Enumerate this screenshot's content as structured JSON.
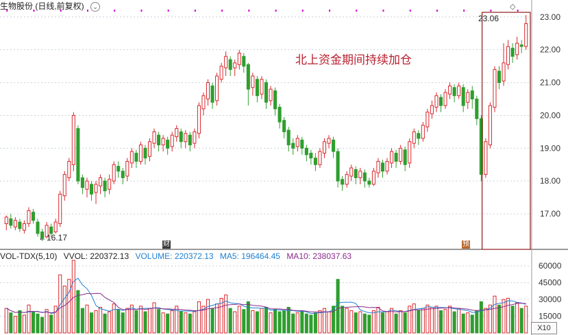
{
  "header": {
    "title": "生物股份 (日线,前复权)",
    "chevron_icon": "chevron-down-icon",
    "diamond_icon": "diamond-icon"
  },
  "annotation_text": "北上资金期间持续加仓",
  "high_label": "23.06",
  "low_label": "←16.17",
  "tag_cai": "财",
  "tag_yu": "预",
  "volume_panel": {
    "indicator": "VOL-TDX(5,10)",
    "vvol_label": "VVOL: 220372.13",
    "volume_label": "VOLUME: 220372.13",
    "ma5_label": "MA5: 196464.45",
    "ma10_label": "MA10: 238037.63",
    "x10_button": "X10"
  },
  "colors": {
    "up": "#d9262b",
    "down": "#2f9e2f",
    "ma5": "#1e7fd1",
    "ma10": "#8a2a8a",
    "highlight_box": "#8b1a1a",
    "grid": "#c8d2dc",
    "marker": "#d400d4"
  },
  "chart_data": [
    {
      "type": "candlestick",
      "title": "生物股份 (日线,前复权)",
      "ylim": [
        16.0,
        23.1
      ],
      "y_ticks": [
        "23.00",
        "22.00",
        "21.00",
        "20.00",
        "19.00",
        "18.00",
        "17.00"
      ],
      "annotation": "北上资金期间持续加仓",
      "high_label": "23.06",
      "low_label": "16.17",
      "candles": [
        [
          16.7,
          16.9,
          16.5,
          16.95
        ],
        [
          16.85,
          16.65,
          16.55,
          17.0
        ],
        [
          16.6,
          16.8,
          16.5,
          16.9
        ],
        [
          16.75,
          16.55,
          16.45,
          16.85
        ],
        [
          16.5,
          16.7,
          16.4,
          16.8
        ],
        [
          16.7,
          17.1,
          16.6,
          17.2
        ],
        [
          17.05,
          16.8,
          16.7,
          17.15
        ],
        [
          16.75,
          16.4,
          16.3,
          16.85
        ],
        [
          16.45,
          16.25,
          16.17,
          16.55
        ],
        [
          16.3,
          16.65,
          16.25,
          16.75
        ],
        [
          16.6,
          16.4,
          16.3,
          16.7
        ],
        [
          16.45,
          16.75,
          16.4,
          16.85
        ],
        [
          16.7,
          17.6,
          16.6,
          17.7
        ],
        [
          17.55,
          18.2,
          17.4,
          18.3
        ],
        [
          18.1,
          18.6,
          18.0,
          18.7
        ],
        [
          18.5,
          20.0,
          18.3,
          20.1
        ],
        [
          19.6,
          18.0,
          17.9,
          19.7
        ],
        [
          18.1,
          17.8,
          17.6,
          18.2
        ],
        [
          17.75,
          18.0,
          17.5,
          18.1
        ],
        [
          17.9,
          17.6,
          17.4,
          18.0
        ],
        [
          17.65,
          17.9,
          17.3,
          18.0
        ],
        [
          17.85,
          18.1,
          17.6,
          18.2
        ],
        [
          18.0,
          17.7,
          17.5,
          18.1
        ],
        [
          17.75,
          18.05,
          17.6,
          18.2
        ],
        [
          18.0,
          18.5,
          17.9,
          18.6
        ],
        [
          18.45,
          18.3,
          18.1,
          18.6
        ],
        [
          18.3,
          18.1,
          17.9,
          18.4
        ],
        [
          18.15,
          18.6,
          18.0,
          18.7
        ],
        [
          18.55,
          18.9,
          18.4,
          19.0
        ],
        [
          18.85,
          18.6,
          18.4,
          18.95
        ],
        [
          18.6,
          19.1,
          18.5,
          19.2
        ],
        [
          19.0,
          18.7,
          18.5,
          19.1
        ],
        [
          18.75,
          19.2,
          18.6,
          19.3
        ],
        [
          19.15,
          19.5,
          19.0,
          19.6
        ],
        [
          19.4,
          19.1,
          18.9,
          19.5
        ],
        [
          19.1,
          19.3,
          18.9,
          19.4
        ],
        [
          19.25,
          19.0,
          18.8,
          19.35
        ],
        [
          19.05,
          19.4,
          18.9,
          19.5
        ],
        [
          19.35,
          19.6,
          19.2,
          19.7
        ],
        [
          19.5,
          19.2,
          19.0,
          19.6
        ],
        [
          19.2,
          19.45,
          19.0,
          19.55
        ],
        [
          19.4,
          19.1,
          18.9,
          19.5
        ],
        [
          19.15,
          19.5,
          19.0,
          19.6
        ],
        [
          19.45,
          20.3,
          19.3,
          20.4
        ],
        [
          20.2,
          20.6,
          20.0,
          20.7
        ],
        [
          20.5,
          21.0,
          20.3,
          21.1
        ],
        [
          20.9,
          20.4,
          20.2,
          21.0
        ],
        [
          20.45,
          21.2,
          20.3,
          21.3
        ],
        [
          21.1,
          21.5,
          21.0,
          21.6
        ],
        [
          21.45,
          21.8,
          21.2,
          21.95
        ],
        [
          21.7,
          21.4,
          21.2,
          21.8
        ],
        [
          21.45,
          21.6,
          21.2,
          21.7
        ],
        [
          21.55,
          21.9,
          21.4,
          22.0
        ],
        [
          21.8,
          21.5,
          21.3,
          21.9
        ],
        [
          21.55,
          20.8,
          20.3,
          21.6
        ],
        [
          20.85,
          21.2,
          20.6,
          21.3
        ],
        [
          21.1,
          20.6,
          20.4,
          21.2
        ],
        [
          20.65,
          21.1,
          20.5,
          21.2
        ],
        [
          21.0,
          20.4,
          20.2,
          21.1
        ],
        [
          20.45,
          20.8,
          20.3,
          20.9
        ],
        [
          20.75,
          20.2,
          20.0,
          20.85
        ],
        [
          20.25,
          19.8,
          19.6,
          20.35
        ],
        [
          19.85,
          19.5,
          19.3,
          19.95
        ],
        [
          19.55,
          19.1,
          18.9,
          19.65
        ],
        [
          19.15,
          19.0,
          18.8,
          19.3
        ],
        [
          19.05,
          19.3,
          18.9,
          19.4
        ],
        [
          19.25,
          19.0,
          18.8,
          19.35
        ],
        [
          19.0,
          18.8,
          18.6,
          19.1
        ],
        [
          18.85,
          18.7,
          18.5,
          18.95
        ],
        [
          18.7,
          18.5,
          18.3,
          18.85
        ],
        [
          18.5,
          18.9,
          18.4,
          19.0
        ],
        [
          18.85,
          19.2,
          18.7,
          19.3
        ],
        [
          19.15,
          19.3,
          19.0,
          19.4
        ],
        [
          19.25,
          18.9,
          18.7,
          19.35
        ],
        [
          18.9,
          18.0,
          17.8,
          19.0
        ],
        [
          18.05,
          17.9,
          17.7,
          18.15
        ],
        [
          17.9,
          18.2,
          17.8,
          18.3
        ],
        [
          18.15,
          18.4,
          18.0,
          18.5
        ],
        [
          18.35,
          18.1,
          17.9,
          18.45
        ],
        [
          18.1,
          18.3,
          17.9,
          18.4
        ],
        [
          18.25,
          18.0,
          17.8,
          18.35
        ],
        [
          18.0,
          17.9,
          17.8,
          18.1
        ],
        [
          17.9,
          18.3,
          17.85,
          18.4
        ],
        [
          18.25,
          18.6,
          18.1,
          18.7
        ],
        [
          18.55,
          18.3,
          18.1,
          18.65
        ],
        [
          18.3,
          18.6,
          18.2,
          18.7
        ],
        [
          18.55,
          18.9,
          18.4,
          19.0
        ],
        [
          18.85,
          18.6,
          18.4,
          18.95
        ],
        [
          18.6,
          19.0,
          18.5,
          19.1
        ],
        [
          18.95,
          18.5,
          18.3,
          19.05
        ],
        [
          18.55,
          19.2,
          18.4,
          19.3
        ],
        [
          19.15,
          19.5,
          19.0,
          19.6
        ],
        [
          19.45,
          19.3,
          19.1,
          19.55
        ],
        [
          19.3,
          19.7,
          19.2,
          19.8
        ],
        [
          19.65,
          20.1,
          19.5,
          20.2
        ],
        [
          20.05,
          20.3,
          19.9,
          20.45
        ],
        [
          20.25,
          20.6,
          20.1,
          20.7
        ],
        [
          20.55,
          20.3,
          20.1,
          20.65
        ],
        [
          20.3,
          20.7,
          20.2,
          20.8
        ],
        [
          20.65,
          20.9,
          20.5,
          21.0
        ],
        [
          20.85,
          20.6,
          20.4,
          20.95
        ],
        [
          20.6,
          20.9,
          20.5,
          21.0
        ],
        [
          20.85,
          20.3,
          20.1,
          20.95
        ],
        [
          20.4,
          20.7,
          20.2,
          20.8
        ],
        [
          20.75,
          20.5,
          20.2,
          20.9
        ],
        [
          20.5,
          19.9,
          19.7,
          20.6
        ],
        [
          19.9,
          18.2,
          18.0,
          20.0
        ],
        [
          18.2,
          19.2,
          18.1,
          19.3
        ],
        [
          19.1,
          20.3,
          19.0,
          20.4
        ],
        [
          20.25,
          21.4,
          20.1,
          21.5
        ],
        [
          21.35,
          21.0,
          20.8,
          21.5
        ],
        [
          21.05,
          21.6,
          20.9,
          22.2
        ],
        [
          21.55,
          22.1,
          21.4,
          22.3
        ],
        [
          22.05,
          21.8,
          21.6,
          22.2
        ],
        [
          21.85,
          22.2,
          21.7,
          22.4
        ],
        [
          22.15,
          22.1,
          21.9,
          22.3
        ],
        [
          22.1,
          22.8,
          22.0,
          23.06
        ]
      ]
    },
    {
      "type": "bar",
      "title": "VOL-TDX(5,10)",
      "ylim": [
        0,
        65000
      ],
      "y_ticks": [
        "60000",
        "45000",
        "30000",
        "15000"
      ],
      "legend": [
        "VOLUME: 220372.13",
        "MA5: 196464.45",
        "MA10: 238037.63"
      ],
      "volumes": [
        22000,
        18000,
        15000,
        20000,
        16000,
        25000,
        19000,
        17000,
        14000,
        21000,
        16000,
        24000,
        52000,
        42000,
        48000,
        65000,
        38000,
        22000,
        25000,
        18000,
        20000,
        23000,
        17000,
        19000,
        26000,
        21000,
        18000,
        22000,
        25000,
        20000,
        24000,
        19000,
        22000,
        27000,
        21000,
        18000,
        17000,
        20000,
        24000,
        19000,
        18000,
        17000,
        19000,
        28000,
        24000,
        30000,
        22000,
        26000,
        31000,
        34000,
        22000,
        19000,
        24000,
        21000,
        28000,
        20000,
        19000,
        22000,
        23000,
        18000,
        21000,
        19000,
        20000,
        23000,
        17000,
        18000,
        19000,
        17000,
        16000,
        18000,
        20000,
        22000,
        19000,
        24000,
        48000,
        24000,
        22000,
        20000,
        18000,
        19000,
        17000,
        16000,
        20000,
        23000,
        18000,
        19000,
        22000,
        17000,
        20000,
        18000,
        24000,
        26000,
        20000,
        22000,
        25000,
        23000,
        24000,
        20000,
        21000,
        24000,
        19000,
        22000,
        17000,
        18000,
        16000,
        20000,
        28000,
        22000,
        25000,
        33000,
        25000,
        30000,
        31000,
        24000,
        27000,
        22000,
        24000
      ]
    }
  ]
}
